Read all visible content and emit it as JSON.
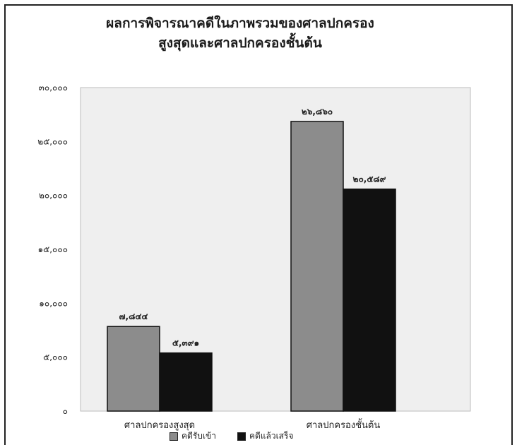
{
  "chart_data": {
    "type": "bar",
    "title": "ผลการพิจารณาคดีในภาพรวมของศาลปกครอง",
    "subtitle": "สูงสุดและศาลปกครองชั้นต้น",
    "categories": [
      "ศาลปกครองสูงสุด",
      "ศาลปกครองชั้นต้น"
    ],
    "series": [
      {
        "name": "คดีรับเข้า",
        "values": [
          7844,
          26860
        ],
        "labels": [
          "๗,๘๔๔",
          "๒๖,๘๖๐"
        ],
        "color": "#8c8c8c"
      },
      {
        "name": "คดีแล้วเสร็จ",
        "values": [
          5391,
          20589
        ],
        "labels": [
          "๕,๓๙๑",
          "๒๐,๕๘๙"
        ],
        "color": "#111111"
      }
    ],
    "ylim": [
      0,
      30000
    ],
    "yticks": [
      0,
      5000,
      10000,
      15000,
      20000,
      25000,
      30000
    ],
    "ytick_labels": [
      "๐",
      "๕,๐๐๐",
      "๑๐,๐๐๐",
      "๑๕,๐๐๐",
      "๒๐,๐๐๐",
      "๒๕,๐๐๐",
      "๓๐,๐๐๐"
    ],
    "plot_background": "#efefef",
    "grid": false,
    "legend_position": "bottom"
  }
}
